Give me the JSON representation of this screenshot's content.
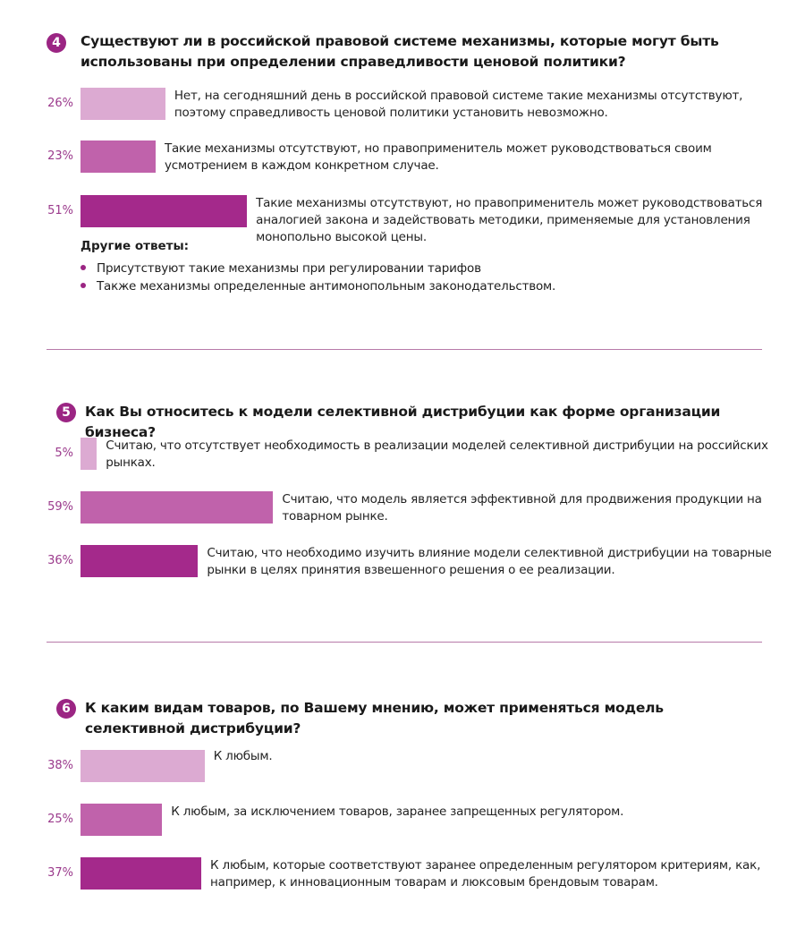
{
  "colors": {
    "light": "#dcaad2",
    "mid": "#c062ab",
    "dark": "#a4298b",
    "number": "#9b2583"
  },
  "chart_data": [
    {
      "type": "bar",
      "number": "4",
      "title": "Существуют ли в российской правовой системе механизмы, которые могут быть использованы при определении справедливости ценовой политики?",
      "categories": [
        "Нет, на сегодняшний день в российской правовой системе такие механизмы отсутствуют, поэтому справедливость ценовой политики установить невозможно.",
        "Такие механизмы отсутствуют, но правоприменитель может руководствоваться своим усмотрением в каждом конкретном случае.",
        "Такие механизмы отсутствуют, но правоприменитель может руководствоваться аналогией закона и задействовать методики, применяемые для установления монопольно высокой цены."
      ],
      "values": [
        26,
        23,
        51
      ],
      "labels": [
        "26%",
        "23%",
        "51%"
      ],
      "other_answers": {
        "heading": "Другие ответы:",
        "items": [
          "Присутствуют такие механизмы при регулировании тарифов",
          "Также механизмы определенные антимонопольным законодательством."
        ]
      }
    },
    {
      "type": "bar",
      "number": "5",
      "title": "Как Вы относитесь к модели селективной дистрибуции как форме организации бизнеса?",
      "categories": [
        "Считаю, что отсутствует необходимость в реализации моделей селективной дистрибуции на российских рынках.",
        "Считаю, что модель является эффективной для продвижения продукции на товарном рынке.",
        "Считаю, что необходимо изучить влияние модели селективной дистрибуции на товарные рынки в целях принятия взвешенного решения о ее реализации."
      ],
      "values": [
        5,
        59,
        36
      ],
      "labels": [
        "5%",
        "59%",
        "36%"
      ]
    },
    {
      "type": "bar",
      "number": "6",
      "title": "К каким видам товаров, по Вашему мнению, может применяться модель селективной дистрибуции?",
      "categories": [
        "К любым.",
        "К любым, за исключением товаров, заранее запрещенных регулятором.",
        "К любым, которые соответствуют заранее определенным регулятором критериям, как, например, к инновационным товарам и люксовым брендовым товарам."
      ],
      "values": [
        38,
        25,
        37
      ],
      "labels": [
        "38%",
        "25%",
        "37%"
      ]
    }
  ]
}
